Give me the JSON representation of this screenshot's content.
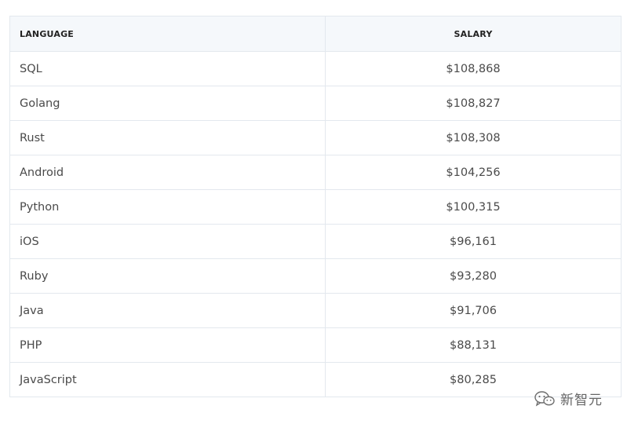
{
  "table": {
    "headers": {
      "language": "LANGUAGE",
      "salary": "SALARY"
    },
    "rows": [
      {
        "language": "SQL",
        "salary": "$108,868"
      },
      {
        "language": "Golang",
        "salary": "$108,827"
      },
      {
        "language": "Rust",
        "salary": "$108,308"
      },
      {
        "language": "Android",
        "salary": "$104,256"
      },
      {
        "language": "Python",
        "salary": "$100,315"
      },
      {
        "language": "iOS",
        "salary": "$96,161"
      },
      {
        "language": "Ruby",
        "salary": "$93,280"
      },
      {
        "language": "Java",
        "salary": "$91,706"
      },
      {
        "language": "PHP",
        "salary": "$88,131"
      },
      {
        "language": "JavaScript",
        "salary": "$80,285"
      }
    ]
  },
  "watermark": {
    "icon": "wechat-icon",
    "text": "新智元"
  }
}
